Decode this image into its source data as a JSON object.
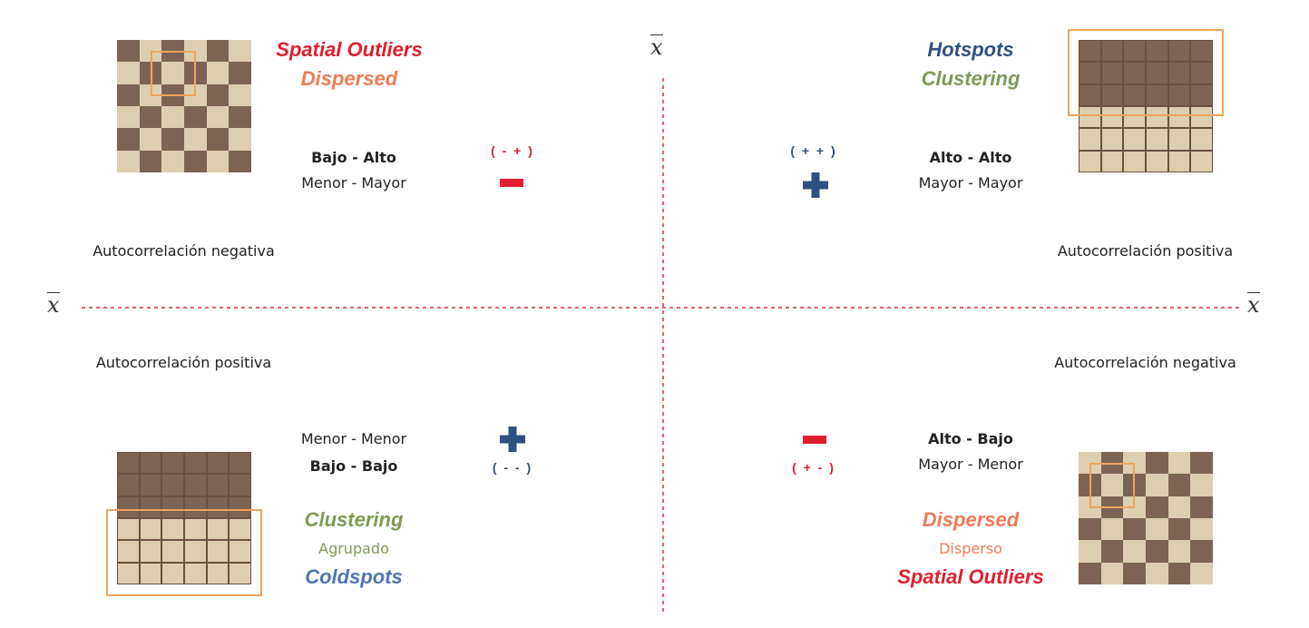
{
  "colors": {
    "dark": "#7d6354",
    "light": "#dccfb0",
    "highlight": "#f0a45d",
    "red": "#e01e2e",
    "orange": "#ef7a55",
    "blue_dark": "#2e527f",
    "blue": "#4d76b6",
    "green": "#7f9a55",
    "axis": "#d7323a"
  },
  "axis": {
    "symbol": "x"
  },
  "quadrants": {
    "top_left": {
      "title_main": "Spatial Outliers",
      "title_sub": "Dispersed",
      "pair_bold": "Bajo - Alto",
      "pair": "Menor - Mayor",
      "sign_text": "( - + )",
      "sign_symbol": "minus",
      "autocorrelation": "Autocorrelación negativa",
      "pattern": "checker"
    },
    "top_right": {
      "title_main": "Hotspots",
      "title_sub": "Clustering",
      "pair_bold": "Alto - Alto",
      "pair": "Mayor - Mayor",
      "sign_text": "( + + )",
      "sign_symbol": "plus",
      "autocorrelation": "Autocorrelación positiva",
      "pattern": "dark-top-half"
    },
    "bottom_left": {
      "pair": "Menor - Menor",
      "pair_bold": "Bajo - Bajo",
      "sign_text": "( - - )",
      "sign_symbol": "plus",
      "title_sub": "Clustering",
      "title_sub_es": "Agrupado",
      "title_main": "Coldspots",
      "autocorrelation": "Autocorrelación positiva",
      "pattern": "dark-top-half"
    },
    "bottom_right": {
      "pair_bold": "Alto - Bajo",
      "pair": "Mayor - Menor",
      "sign_text": "( + - )",
      "sign_symbol": "minus",
      "title_sub": "Dispersed",
      "title_sub_es": "Disperso",
      "title_main": "Spatial Outliers",
      "autocorrelation": "Autocorrelación negativa",
      "pattern": "checker"
    }
  }
}
